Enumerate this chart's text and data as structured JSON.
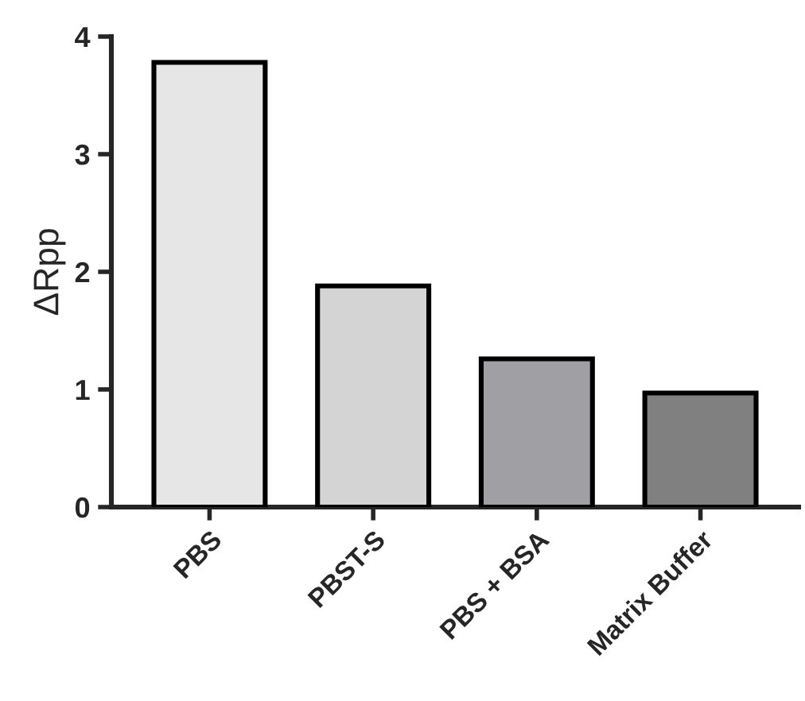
{
  "chart_data": {
    "type": "bar",
    "ylabel": "ΔRpp",
    "categories": [
      "PBS",
      "PBST-S",
      "PBS + BSA",
      "Matrix Buffer"
    ],
    "values": [
      3.78,
      1.88,
      1.26,
      0.97
    ],
    "colors": [
      "#e6e6e6",
      "#d4d4d4",
      "#a0a0a4",
      "#808080"
    ],
    "ylim": [
      0,
      4
    ],
    "yticks": [
      0,
      1,
      2,
      3,
      4
    ],
    "grid": false
  }
}
